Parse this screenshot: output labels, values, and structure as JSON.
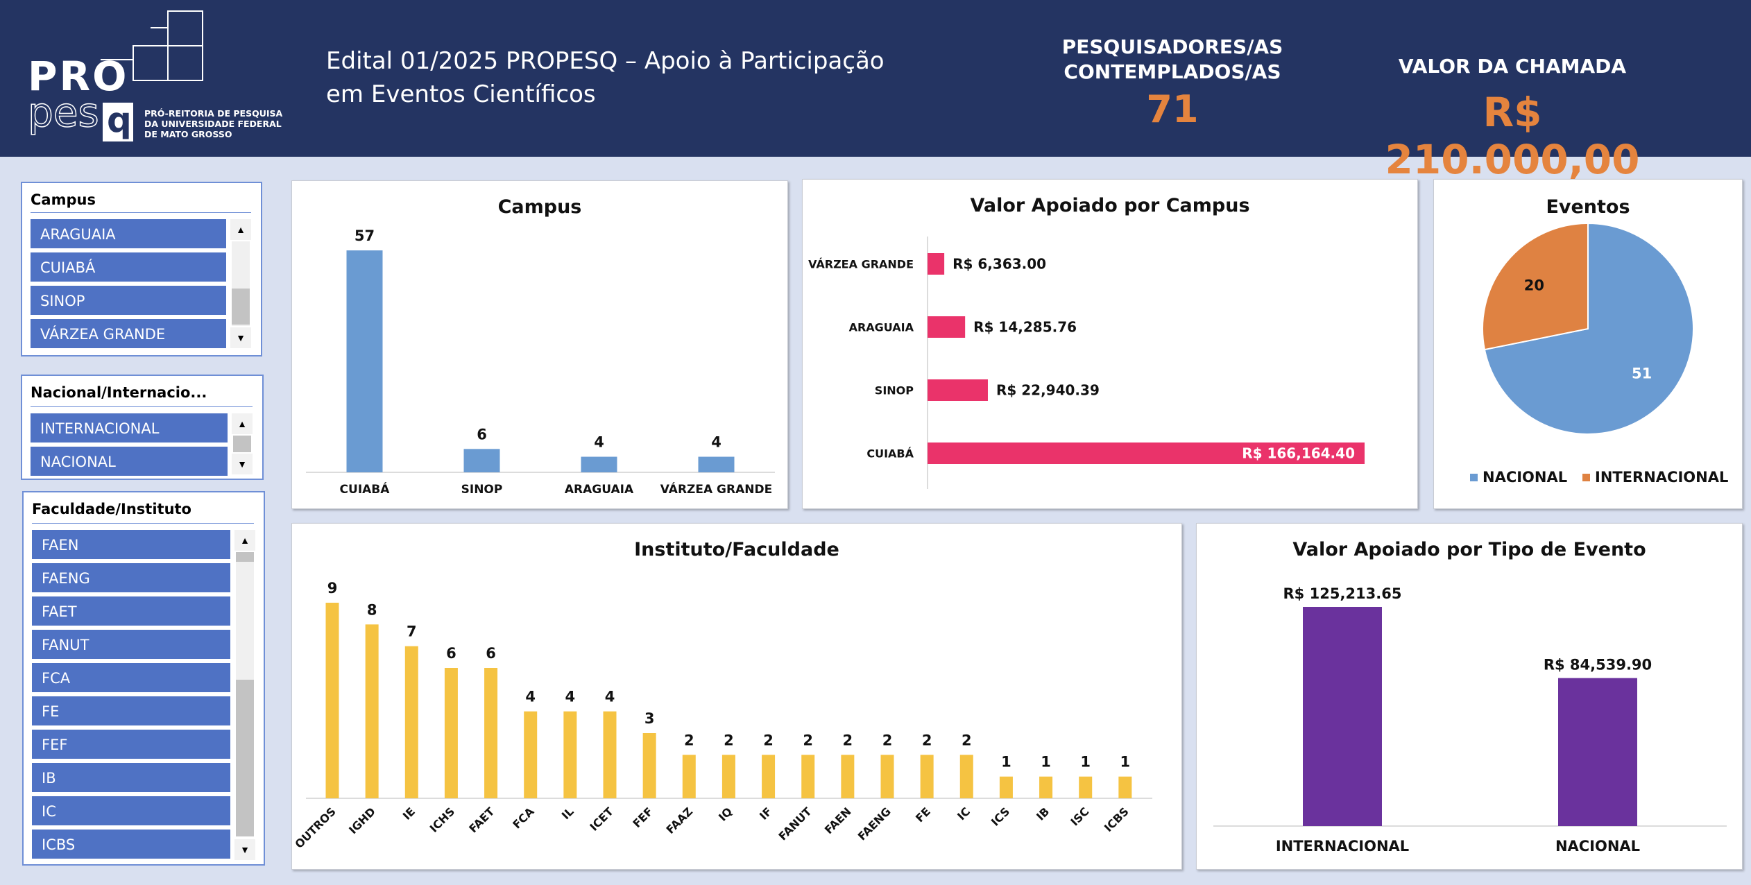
{
  "header": {
    "logo_text_pro": "PRO",
    "logo_text_pesq": "pes",
    "logo_text_q": "q",
    "logo_caption": [
      "PRÓ-REITORIA DE PESQUISA",
      "DA UNIVERSIDADE FEDERAL",
      "DE MATO GROSSO"
    ],
    "title": "Edital 01/2025 PROPESQ – Apoio à Participação em Eventos Científicos",
    "researchers_label_line1": "PESQUISADORES/AS",
    "researchers_label_line2": "CONTEMPLADOS/AS",
    "researchers_value": "71",
    "call_value_label": "VALOR DA CHAMADA",
    "call_value": "R$ 210.000,00"
  },
  "slicers": {
    "campus": {
      "title": "Campus",
      "items": [
        "ARAGUAIA",
        "CUIABÁ",
        "SINOP",
        "VÁRZEA GRANDE"
      ]
    },
    "nacional": {
      "title": "Nacional/Internacio...",
      "items": [
        "INTERNACIONAL",
        "NACIONAL"
      ]
    },
    "faculdade": {
      "title": "Faculdade/Instituto",
      "items": [
        "FAEN",
        "FAENG",
        "FAET",
        "FANUT",
        "FCA",
        "FE",
        "FEF",
        "IB",
        "IC",
        "ICBS"
      ]
    }
  },
  "colors": {
    "header_bg": "#243462",
    "accent_orange": "#e5843e",
    "campus_bar": "#6a9bd2",
    "valor_campus_bar": "#ea336a",
    "pie_nacional": "#6a9bd2",
    "pie_internacional": "#df8242",
    "instituto_bar": "#f5c342",
    "tipo_bar": "#6a329d",
    "slicer_item": "#4f72c4"
  },
  "chart_data": [
    {
      "id": "campus",
      "type": "bar",
      "title": "Campus",
      "categories": [
        "CUIABÁ",
        "SINOP",
        "ARAGUAIA",
        "VÁRZEA GRANDE"
      ],
      "values": [
        57,
        6,
        4,
        4
      ],
      "data_labels": [
        "57",
        "6",
        "4",
        "4"
      ]
    },
    {
      "id": "valor_campus",
      "type": "bar",
      "orientation": "horizontal",
      "title": "Valor Apoiado por Campus",
      "categories": [
        "VÁRZEA GRANDE",
        "ARAGUAIA",
        "SINOP",
        "CUIABÁ"
      ],
      "values": [
        6363.0,
        14285.76,
        22940.39,
        166164.4
      ],
      "data_labels": [
        "R$ 6,363.00",
        "R$ 14,285.76",
        "R$ 22,940.39",
        "R$ 166,164.40"
      ]
    },
    {
      "id": "eventos",
      "type": "pie",
      "title": "Eventos",
      "categories": [
        "NACIONAL",
        "INTERNACIONAL"
      ],
      "values": [
        51,
        20
      ],
      "data_labels": [
        "51",
        "20"
      ],
      "legend": "bottom"
    },
    {
      "id": "instituto",
      "type": "bar",
      "title": "Instituto/Faculdade",
      "categories": [
        "OUTROS",
        "IGHD",
        "IE",
        "ICHS",
        "FAET",
        "FCA",
        "IL",
        "ICET",
        "FEF",
        "FAAZ",
        "IQ",
        "IF",
        "FANUT",
        "FAEN",
        "FAENG",
        "FE",
        "IC",
        "ICS",
        "IB",
        "ISC",
        "ICBS"
      ],
      "values": [
        9,
        8,
        7,
        6,
        6,
        4,
        4,
        4,
        3,
        2,
        2,
        2,
        2,
        2,
        2,
        2,
        2,
        1,
        1,
        1,
        1
      ],
      "data_labels": [
        "9",
        "8",
        "7",
        "6",
        "6",
        "4",
        "4",
        "4",
        "3",
        "2",
        "2",
        "2",
        "2",
        "2",
        "2",
        "2",
        "2",
        "1",
        "1",
        "1",
        "1"
      ]
    },
    {
      "id": "valor_tipo",
      "type": "bar",
      "title": "Valor Apoiado por Tipo de Evento",
      "categories": [
        "INTERNACIONAL",
        "NACIONAL"
      ],
      "values": [
        125213.65,
        84539.9
      ],
      "data_labels": [
        "R$ 125,213.65",
        "R$ 84,539.90"
      ]
    }
  ]
}
